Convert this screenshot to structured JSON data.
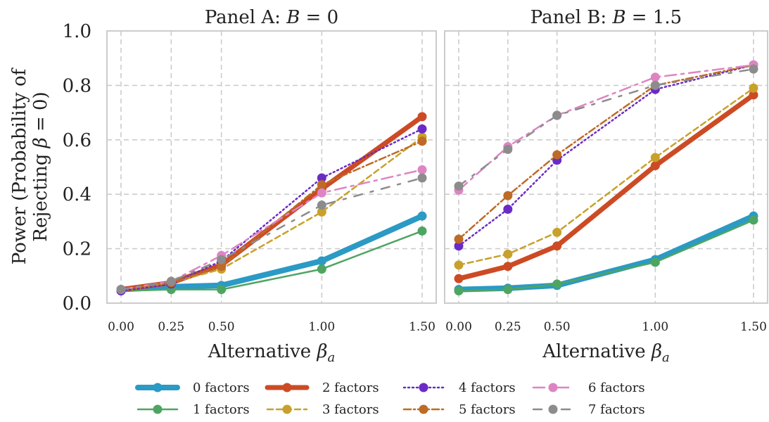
{
  "chart_data": {
    "type": "line",
    "ylabel": "Power (Probability of Rejecting β = 0)",
    "ylim": [
      0,
      1
    ],
    "yticks": [
      "0.0",
      "0.2",
      "0.4",
      "0.6",
      "0.8",
      "1.0"
    ],
    "xticks": [
      "0.00",
      "0.25",
      "0.50",
      "1.00",
      "1.50"
    ],
    "x": [
      0.0,
      0.25,
      0.5,
      1.0,
      1.5
    ],
    "grid": true,
    "legend_position": "bottom",
    "panels": [
      {
        "title": "Panel A: B = 0",
        "xlabel": "Alternative βa",
        "series": [
          {
            "name": "0 factors",
            "values": [
              0.05,
              0.06,
              0.065,
              0.155,
              0.32
            ]
          },
          {
            "name": "1 factors",
            "values": [
              0.045,
              0.05,
              0.05,
              0.125,
              0.265
            ]
          },
          {
            "name": "2 factors",
            "values": [
              0.05,
              0.075,
              0.14,
              0.42,
              0.685
            ]
          },
          {
            "name": "3 factors",
            "values": [
              0.045,
              0.075,
              0.125,
              0.335,
              0.61
            ]
          },
          {
            "name": "4 factors",
            "values": [
              0.045,
              0.07,
              0.155,
              0.46,
              0.64
            ]
          },
          {
            "name": "5 factors",
            "values": [
              0.05,
              0.075,
              0.135,
              0.435,
              0.595
            ]
          },
          {
            "name": "6 factors",
            "values": [
              0.05,
              0.08,
              0.175,
              0.405,
              0.49
            ]
          },
          {
            "name": "7 factors",
            "values": [
              0.05,
              0.08,
              0.16,
              0.36,
              0.46
            ]
          }
        ]
      },
      {
        "title": "Panel B: B = 1.5",
        "xlabel": "Alternative βa",
        "series": [
          {
            "name": "0 factors",
            "values": [
              0.05,
              0.055,
              0.065,
              0.16,
              0.32
            ]
          },
          {
            "name": "1 factors",
            "values": [
              0.045,
              0.05,
              0.07,
              0.15,
              0.305
            ]
          },
          {
            "name": "2 factors",
            "values": [
              0.09,
              0.135,
              0.21,
              0.505,
              0.765
            ]
          },
          {
            "name": "3 factors",
            "values": [
              0.14,
              0.18,
              0.26,
              0.535,
              0.79
            ]
          },
          {
            "name": "4 factors",
            "values": [
              0.21,
              0.345,
              0.525,
              0.785,
              0.875
            ]
          },
          {
            "name": "5 factors",
            "values": [
              0.235,
              0.395,
              0.545,
              0.8,
              0.875
            ]
          },
          {
            "name": "6 factors",
            "values": [
              0.415,
              0.575,
              0.69,
              0.83,
              0.875
            ]
          },
          {
            "name": "7 factors",
            "values": [
              0.43,
              0.565,
              0.69,
              0.8,
              0.86
            ]
          }
        ]
      }
    ],
    "styles": [
      {
        "color": "#2b9ac4",
        "dash": "",
        "width": 8
      },
      {
        "color": "#4ea561",
        "dash": "",
        "width": 2.5
      },
      {
        "color": "#cc4b24",
        "dash": "",
        "width": 7
      },
      {
        "color": "#c8a12b",
        "dash": "8 5",
        "width": 2.5
      },
      {
        "color": "#6a2bc6",
        "dash": "2 4",
        "width": 2.5
      },
      {
        "color": "#bd6b26",
        "dash": "10 4 2 4",
        "width": 2.5
      },
      {
        "color": "#dd85c3",
        "dash": "16 7 4 7",
        "width": 2.5
      },
      {
        "color": "#8c8c8c",
        "dash": "12 12 4 12",
        "width": 2.5
      }
    ]
  }
}
